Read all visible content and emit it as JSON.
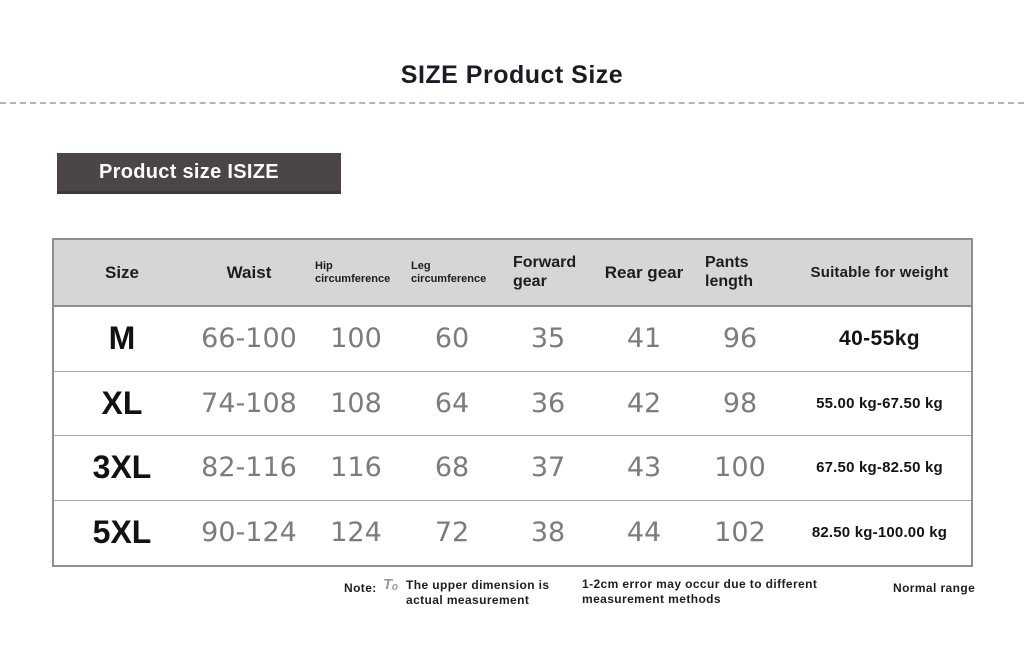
{
  "page": {
    "title": "SIZE Product Size",
    "banner_label": "Product size ISIZE"
  },
  "table": {
    "columns": [
      {
        "key": "size",
        "label": "Size"
      },
      {
        "key": "waist",
        "label": "Waist"
      },
      {
        "key": "hip",
        "label": "Hip circumference"
      },
      {
        "key": "leg",
        "label": "Leg circumference"
      },
      {
        "key": "forward",
        "label": "Forward gear"
      },
      {
        "key": "rear",
        "label": "Rear gear"
      },
      {
        "key": "pants",
        "label": "Pants length"
      },
      {
        "key": "weight",
        "label": "Suitable for weight"
      }
    ],
    "rows": [
      {
        "size": "M",
        "waist": "66-100",
        "hip": "100",
        "leg": "60",
        "forward": "35",
        "rear": "41",
        "pants": "96",
        "weight": "40-55kg"
      },
      {
        "size": "XL",
        "waist": "74-108",
        "hip": "108",
        "leg": "64",
        "forward": "36",
        "rear": "42",
        "pants": "98",
        "weight": "55.00 kg-67.50 kg"
      },
      {
        "size": "3XL",
        "waist": "82-116",
        "hip": "116",
        "leg": "68",
        "forward": "37",
        "rear": "43",
        "pants": "100",
        "weight": "67.50 kg-82.50 kg"
      },
      {
        "size": "5XL",
        "waist": "90-124",
        "hip": "124",
        "leg": "72",
        "forward": "38",
        "rear": "44",
        "pants": "102",
        "weight": "82.50 kg-100.00 kg"
      }
    ]
  },
  "notes": {
    "label": "Note:",
    "icon_glyph": "Tₒ",
    "item1": "The upper dimension is actual measurement",
    "item2": "1-2cm error may occur due to different measurement methods",
    "item3": "Normal range"
  },
  "colors": {
    "banner_bg": "#4b4546",
    "header_bg": "#d6d6d6",
    "table_border": "#8f8f8f",
    "number_text": "#7c7c7c",
    "title_text": "#1b1b26"
  }
}
